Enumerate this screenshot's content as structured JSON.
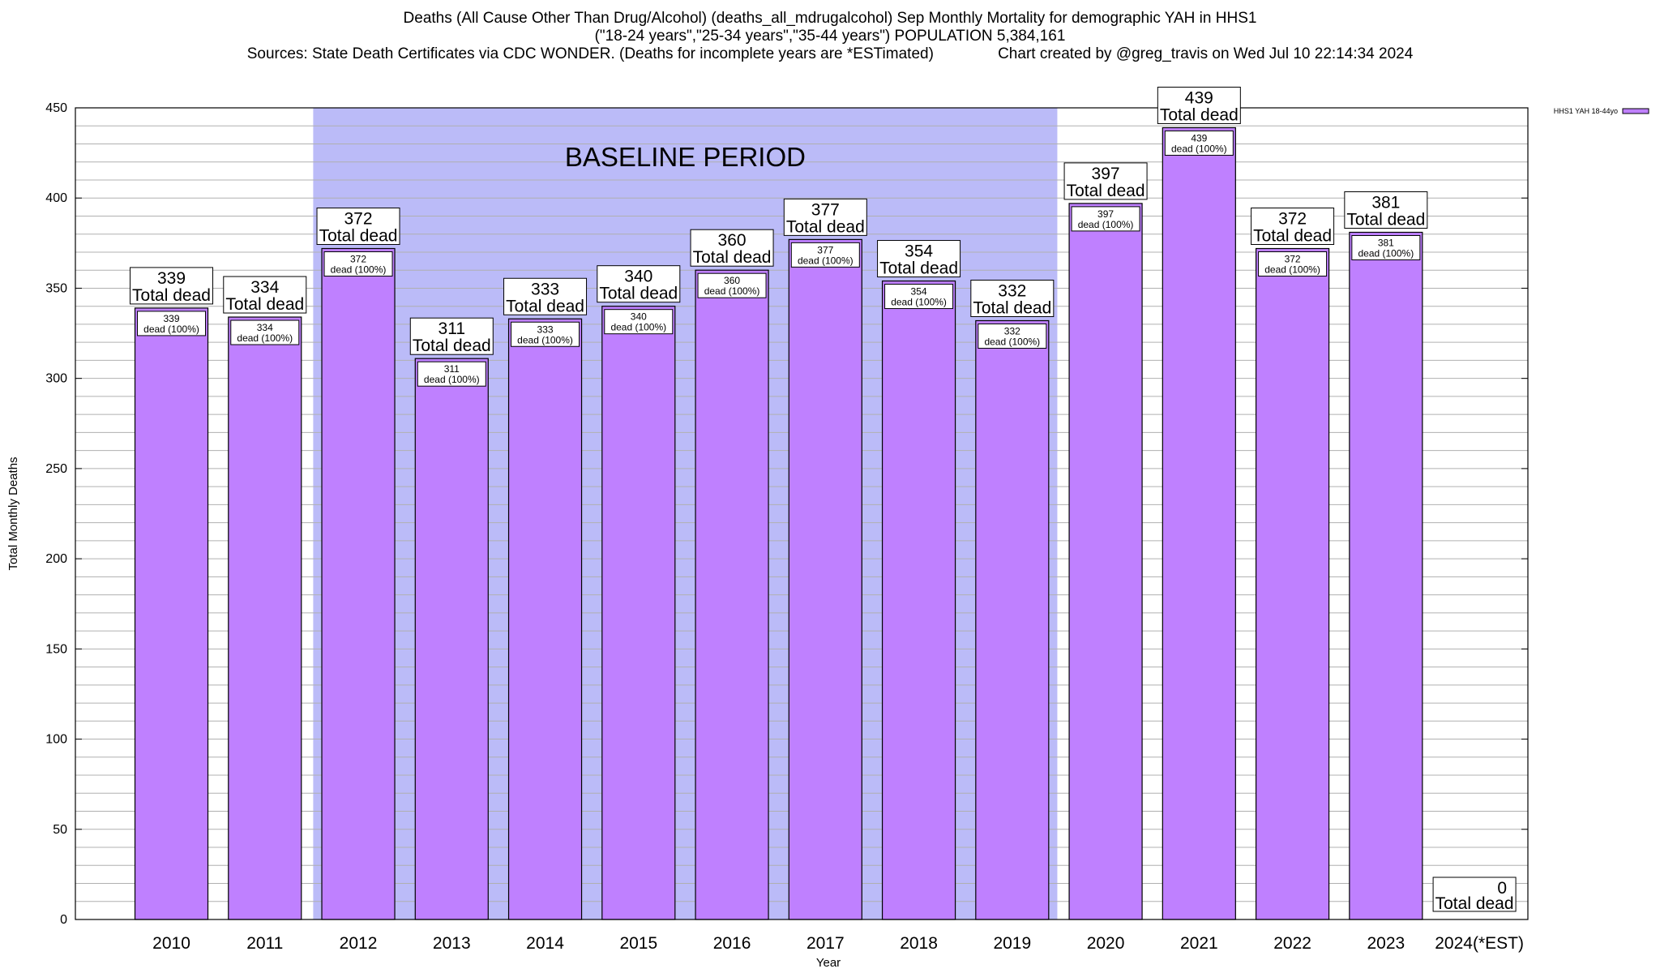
{
  "header": {
    "title_line1": "Deaths (All Cause Other Than Drug/Alcohol) (deaths_all_mdrugalcohol) Sep Monthly Mortality for demographic YAH in HHS1",
    "title_line2": "(\"18-24 years\",\"25-34 years\",\"35-44 years\") POPULATION 5,384,161",
    "title_line3": "Sources: State Death Certificates via CDC WONDER. (Deaths for incomplete years are *ESTimated)               Chart created by @greg_travis on Wed Jul 10 22:14:34 2024"
  },
  "chart_data": {
    "type": "bar",
    "xlabel": "Year",
    "ylabel": "Total Monthly Deaths",
    "ylim": [
      0,
      450
    ],
    "y_major_ticks": [
      0,
      50,
      100,
      150,
      200,
      250,
      300,
      350,
      400,
      450
    ],
    "y_minor_step": 10,
    "grid": true,
    "categories": [
      "2010",
      "2011",
      "2012",
      "2013",
      "2014",
      "2015",
      "2016",
      "2017",
      "2018",
      "2019",
      "2020",
      "2021",
      "2022",
      "2023",
      "2024(*EST)"
    ],
    "series": [
      {
        "name": "HHS1 YAH 18-44yo",
        "values": [
          339,
          334,
          372,
          311,
          333,
          340,
          360,
          377,
          354,
          332,
          397,
          439,
          372,
          381,
          0
        ]
      }
    ],
    "total_label_suffix": "Total dead",
    "bar_label_suffix": "dead (100%)",
    "baseline_period": {
      "label": "BASELINE PERIOD",
      "from": "2012",
      "to": "2019"
    },
    "legend_placement": "top-right",
    "colors": {
      "bar": "#bf80ff",
      "baseline_band": "#bbbbf8",
      "grid": "#b0b0b0"
    }
  }
}
